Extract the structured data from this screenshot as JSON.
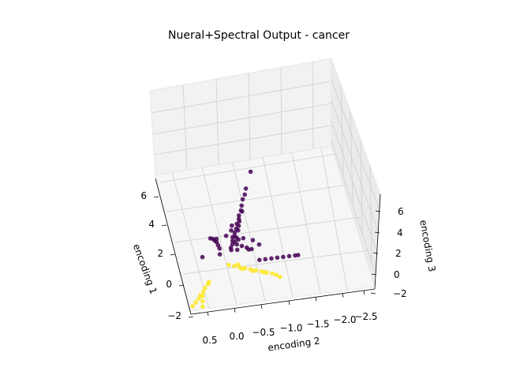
{
  "chart_data": {
    "type": "scatter",
    "projection": "3d",
    "title": "Nueral+Spectral Output - cancer",
    "axes": {
      "x": {
        "label": "encoding 1",
        "range": [
          -2.6,
          6.3
        ],
        "ticks": [
          -2,
          0,
          2,
          4,
          6
        ]
      },
      "y": {
        "label": "encoding 2",
        "range": [
          -2.8,
          0.8
        ],
        "ticks": [
          0.5,
          0.0,
          -0.5,
          -1.0,
          -1.5,
          -2.0,
          -2.5
        ],
        "tick_labels": [
          "0.5",
          "0.0",
          "−0.5",
          "−1.0",
          "−1.5",
          "−2.0",
          "−2.5"
        ]
      },
      "z": {
        "label": "encoding 3",
        "range": [
          -2.3,
          7.0
        ],
        "ticks": [
          -2,
          0,
          2,
          4,
          6
        ]
      }
    },
    "tick_labels": {
      "x": [
        "−2",
        "0",
        "2",
        "4",
        "6"
      ],
      "z": [
        "−2",
        "0",
        "2",
        "4",
        "6"
      ]
    },
    "grid": true,
    "legend": "none",
    "colors": {
      "class0": "#440154",
      "class1": "#fde725",
      "pane": "#f2f2f2"
    },
    "series": [
      {
        "color": "#440154",
        "points": [
          [
            0.2,
            0.15,
            6.6
          ],
          [
            0.5,
            0.1,
            5.4
          ],
          [
            0.9,
            0.05,
            4.9
          ],
          [
            1.3,
            0.05,
            4.5
          ],
          [
            1.6,
            0.0,
            4.0
          ],
          [
            1.9,
            -0.05,
            3.6
          ],
          [
            2.2,
            -0.05,
            3.2
          ],
          [
            2.5,
            -0.1,
            2.9
          ],
          [
            2.8,
            -0.1,
            2.5
          ],
          [
            3.1,
            -0.15,
            2.1
          ],
          [
            3.3,
            -0.15,
            1.8
          ],
          [
            3.6,
            -0.2,
            1.5
          ],
          [
            3.9,
            -0.2,
            1.1
          ],
          [
            4.2,
            -0.25,
            0.8
          ],
          [
            4.5,
            -0.25,
            0.5
          ],
          [
            4.7,
            -0.3,
            0.3
          ],
          [
            2.0,
            -0.1,
            3.5
          ],
          [
            2.6,
            -0.15,
            2.7
          ],
          [
            3.0,
            -0.2,
            2.3
          ],
          [
            3.4,
            -0.25,
            1.9
          ],
          [
            3.7,
            -0.15,
            1.4
          ],
          [
            4.0,
            -0.3,
            1.0
          ],
          [
            3.2,
            0.0,
            2.0
          ],
          [
            2.9,
            0.05,
            2.4
          ],
          [
            3.5,
            0.1,
            1.6
          ],
          [
            4.6,
            -1.0,
            0.2
          ],
          [
            4.4,
            -0.8,
            0.4
          ],
          [
            4.2,
            -0.6,
            0.6
          ],
          [
            4.0,
            -0.4,
            0.8
          ],
          [
            3.8,
            -0.9,
            1.0
          ],
          [
            4.5,
            -0.5,
            0.3
          ],
          [
            4.7,
            0.05,
            0.1
          ],
          [
            4.3,
            0.15,
            0.6
          ],
          [
            4.0,
            0.25,
            0.9
          ],
          [
            3.7,
            0.35,
            1.2
          ],
          [
            3.4,
            0.45,
            1.4
          ],
          [
            3.1,
            0.55,
            1.6
          ],
          [
            2.9,
            0.65,
            1.7
          ],
          [
            4.6,
            -0.9,
            0.2
          ],
          [
            4.4,
            -1.2,
            0.5
          ],
          [
            4.1,
            -0.4,
            1.1
          ],
          [
            3.9,
            -0.3,
            1.3
          ],
          [
            4.5,
            -2.0,
            -0.6
          ],
          [
            4.5,
            -2.2,
            -0.6
          ],
          [
            4.5,
            -2.4,
            -0.6
          ],
          [
            4.5,
            -2.6,
            -0.6
          ],
          [
            4.5,
            -1.8,
            -0.6
          ],
          [
            4.5,
            -1.6,
            -0.6
          ],
          [
            4.5,
            -1.4,
            -0.6
          ],
          [
            4.5,
            -2.7,
            -0.6
          ],
          [
            1.2,
            0.5,
            2.0
          ],
          [
            5.4,
            0.6,
            -0.1
          ],
          [
            5.2,
            -0.6,
            0.9
          ]
        ]
      },
      {
        "color": "#fde725",
        "points": [
          [
            -0.5,
            0.6,
            -2.1
          ],
          [
            -0.8,
            0.55,
            -1.8
          ],
          [
            -1.1,
            0.5,
            -1.5
          ],
          [
            -1.4,
            0.5,
            -1.2
          ],
          [
            -1.7,
            0.45,
            -0.9
          ],
          [
            -2.0,
            0.45,
            -0.6
          ],
          [
            -2.3,
            0.4,
            -0.3
          ],
          [
            -2.5,
            0.4,
            -0.1
          ],
          [
            -1.9,
            0.3,
            -1.9
          ],
          [
            -1.6,
            0.35,
            -1.6
          ],
          [
            -1.3,
            0.4,
            -1.3
          ],
          [
            3.7,
            -0.35,
            -0.5
          ],
          [
            3.6,
            -0.55,
            -0.6
          ],
          [
            3.5,
            -0.75,
            -0.7
          ],
          [
            3.4,
            -0.95,
            -0.8
          ],
          [
            3.3,
            -1.15,
            -0.9
          ],
          [
            3.2,
            -1.35,
            -1.0
          ],
          [
            3.1,
            -1.55,
            -1.1
          ],
          [
            3.0,
            -1.75,
            -1.2
          ],
          [
            2.9,
            -1.95,
            -1.3
          ],
          [
            2.8,
            -2.1,
            -1.4
          ],
          [
            3.5,
            -0.65,
            -0.5
          ],
          [
            3.3,
            -0.85,
            -0.8
          ],
          [
            3.1,
            -1.25,
            -1.0
          ],
          [
            2.95,
            -1.65,
            -1.15
          ],
          [
            2.7,
            -2.25,
            -1.55
          ]
        ]
      }
    ]
  }
}
